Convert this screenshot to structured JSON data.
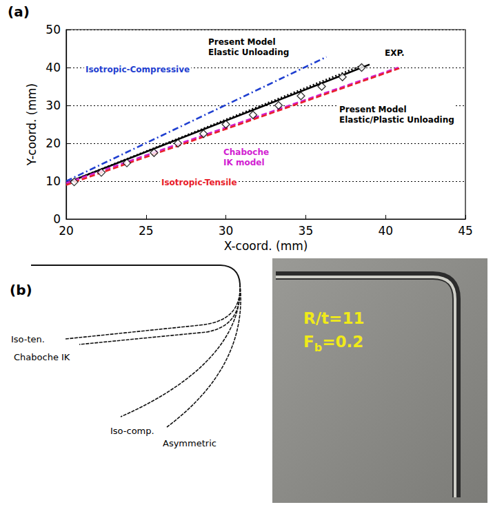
{
  "chart_data": {
    "type": "line",
    "title": "(a)",
    "x_label": "X-coord. (mm)",
    "y_label": "Y-coord. (mm)",
    "xlim": [
      20,
      45
    ],
    "xticks": [
      20,
      25,
      30,
      35,
      40,
      45
    ],
    "ylim": [
      0,
      50
    ],
    "yticks": [
      0,
      10,
      20,
      30,
      40,
      50
    ],
    "grid": true,
    "series": [
      {
        "name": "Isotropic-Compressive",
        "color": "#1f3fd0",
        "line_style": "dashdot",
        "x": [
          20,
          36.3
        ],
        "values": [
          10,
          42.8
        ]
      },
      {
        "name": "Present Model\nElastic Unloading",
        "color": "#000000",
        "line_style": "dotted",
        "x": [
          20,
          38.5
        ],
        "values": [
          9.5,
          40.5
        ]
      },
      {
        "name": "EXP.",
        "type": "scatter",
        "color": "#000000",
        "marker": "diamond",
        "line_style": "none",
        "x": [
          20.5,
          22.2,
          23.8,
          25.5,
          27.0,
          28.6,
          30.0,
          31.7,
          33.3,
          34.7,
          36.0,
          37.3,
          38.5
        ],
        "values": [
          9.8,
          12.3,
          14.8,
          17.5,
          20.0,
          22.5,
          25.0,
          27.5,
          30.0,
          32.5,
          35.0,
          37.5,
          40.0
        ]
      },
      {
        "name": "Present Model\nElastic/Plastic Unloading",
        "color": "#000000",
        "line_style": "solid",
        "x": [
          20,
          39
        ],
        "values": [
          9.5,
          40.8
        ]
      },
      {
        "name": "Chaboche\nIK model",
        "color": "#d21fd2",
        "line_style": "dashed",
        "x": [
          20,
          40.8
        ],
        "values": [
          9.5,
          40
        ]
      },
      {
        "name": "Isotropic-Tensile",
        "color": "#e8202a",
        "line_style": "dashed",
        "x": [
          20,
          41
        ],
        "values": [
          9,
          40
        ]
      }
    ]
  },
  "panel_b": {
    "title": "(b)",
    "curves": [
      "Iso-ten.",
      "Chaboche IK",
      "Iso-comp.",
      "Asymmetric"
    ],
    "photo_texts": [
      {
        "text": "R/t=11"
      },
      {
        "text": "F",
        "subscript": "b",
        "suffix": "=0.2"
      }
    ]
  }
}
